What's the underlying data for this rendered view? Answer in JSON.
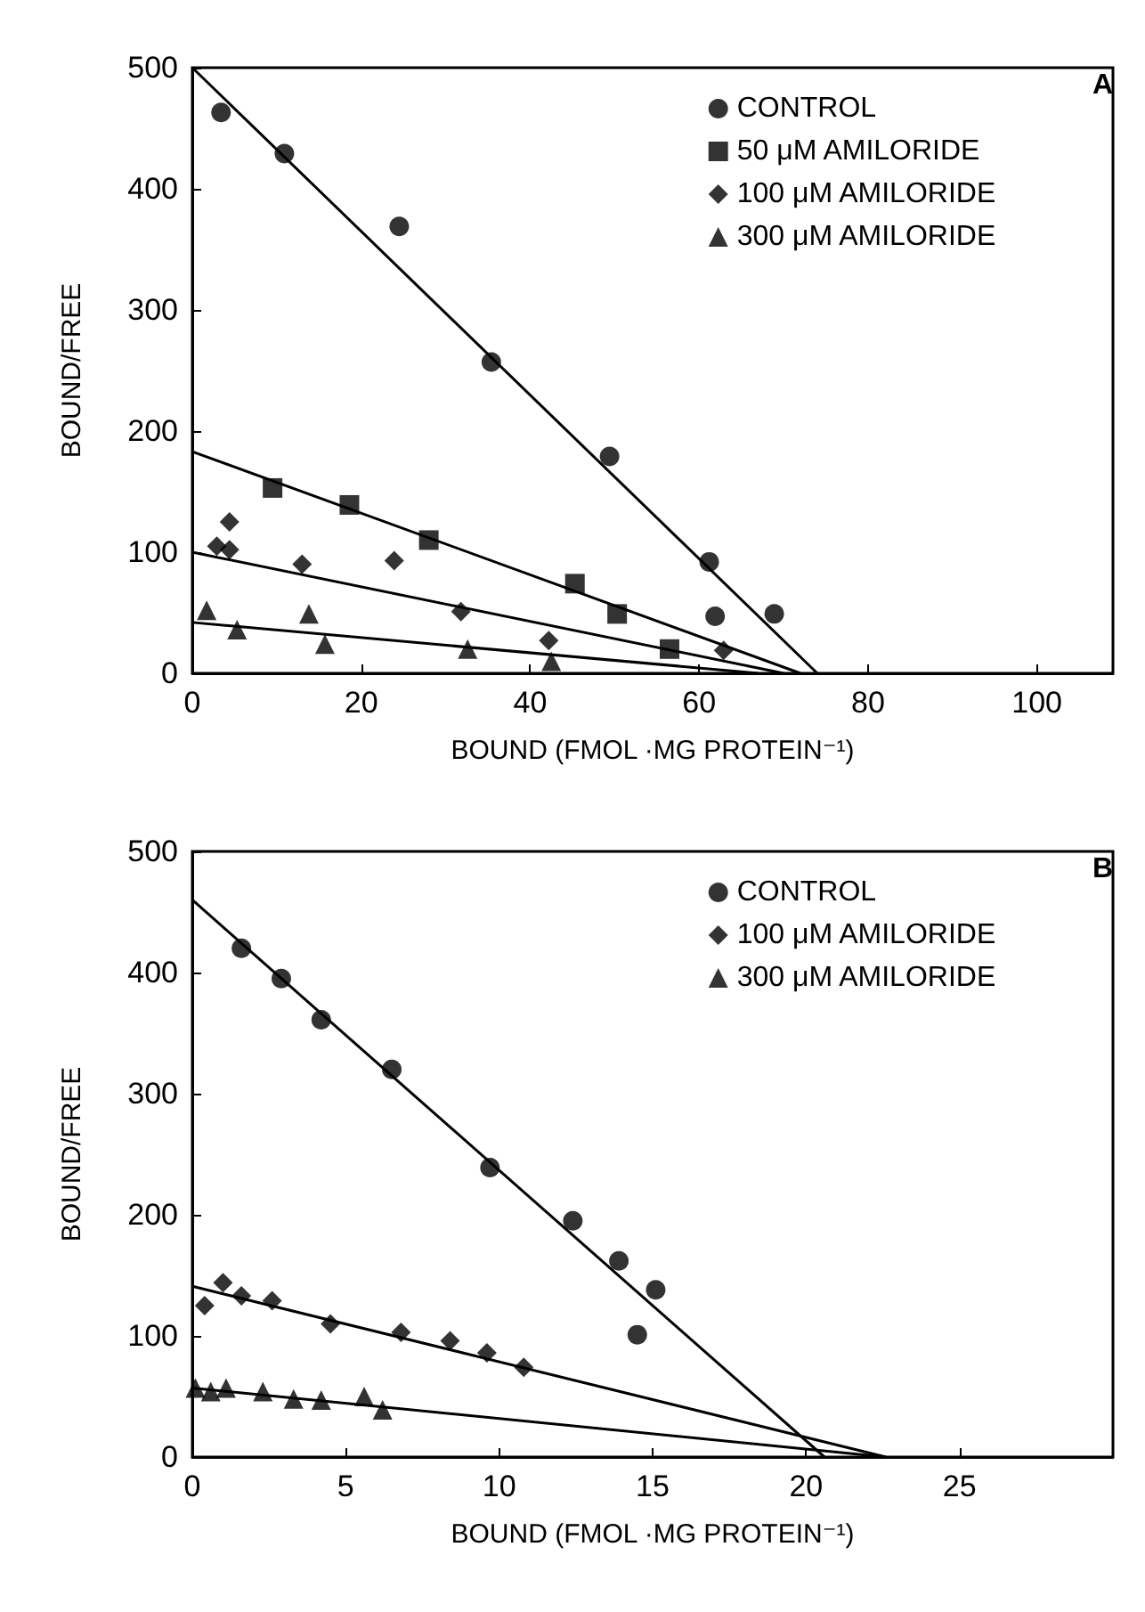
{
  "chart_data": [
    {
      "type": "scatter",
      "xlabel": "BOUND (FMOL ·MG PROTEIN⁻¹)",
      "ylabel": "BOUND/FREE",
      "xlim": [
        0,
        109
      ],
      "xticks": [
        0,
        20,
        40,
        60,
        80,
        100
      ],
      "ylim": [
        0,
        500
      ],
      "yticks": [
        0,
        100,
        200,
        300,
        400,
        500
      ],
      "grid": false,
      "legend": "top right",
      "annotations": [
        "A"
      ],
      "series": [
        {
          "name": "CONTROL",
          "color": "#000000",
          "marker": "circle",
          "x": [
            3.4,
            10.9,
            24.5,
            35.4,
            49.4,
            61.2,
            61.9,
            68.9
          ],
          "values": [
            463,
            429,
            369,
            257,
            179,
            92,
            47,
            49
          ]
        },
        {
          "name": "50 μM AMILORIDE",
          "color": "#000000",
          "marker": "square",
          "x": [
            9.5,
            18.6,
            28.0,
            45.3,
            50.3,
            56.5
          ],
          "values": [
            153,
            139,
            110,
            74,
            49,
            20
          ]
        },
        {
          "name": "100 μM AMILORIDE",
          "color": "#000000",
          "marker": "diamond",
          "x": [
            2.9,
            4.4,
            4.4,
            13,
            23.9,
            31.8,
            42.2,
            62.9
          ],
          "values": [
            105,
            125,
            102,
            90,
            93,
            51,
            27,
            19
          ]
        },
        {
          "name": "300 μM AMILORIDE",
          "color": "#000000",
          "marker": "triangle",
          "x": [
            1.7,
            5.3,
            13.8,
            15.7,
            32.6,
            42.5
          ],
          "values": [
            52,
            36,
            49,
            24,
            20,
            10
          ]
        },
        {
          "type": "line",
          "color": "#000000",
          "line_style": "solid",
          "x": [
            0,
            74
          ],
          "values": [
            500,
            0
          ]
        },
        {
          "type": "line",
          "color": "#000000",
          "line_style": "solid",
          "x": [
            0,
            72
          ],
          "values": [
            183,
            0
          ]
        },
        {
          "type": "line",
          "color": "#000000",
          "line_style": "solid",
          "x": [
            0,
            70
          ],
          "values": [
            100,
            0
          ]
        },
        {
          "type": "line",
          "color": "#000000",
          "line_style": "solid",
          "x": [
            0,
            67
          ],
          "values": [
            42,
            0
          ]
        }
      ]
    },
    {
      "type": "scatter",
      "xlabel": "BOUND (FMOL ·MG PROTEIN⁻¹)",
      "ylabel": "BOUND/FREE",
      "xlim": [
        0,
        30
      ],
      "xticks": [
        0,
        5,
        10,
        15,
        20,
        25
      ],
      "ylim": [
        0,
        500
      ],
      "yticks": [
        0,
        100,
        200,
        300,
        400,
        500
      ],
      "grid": false,
      "legend": "top right",
      "annotations": [
        "B"
      ],
      "series": [
        {
          "name": "CONTROL",
          "color": "#000000",
          "marker": "circle",
          "x": [
            1.6,
            2.9,
            4.2,
            6.5,
            9.7,
            12.4,
            13.9,
            15.1,
            14.5
          ],
          "values": [
            420,
            395,
            361,
            320,
            239,
            195,
            162,
            138,
            101
          ]
        },
        {
          "name": "100 μM AMILORIDE",
          "color": "#000000",
          "marker": "diamond",
          "x": [
            0.4,
            1.0,
            1.6,
            2.6,
            4.5,
            6.8,
            8.4,
            9.6,
            10.8
          ],
          "values": [
            125,
            144,
            133,
            129,
            110,
            103,
            96,
            86,
            74
          ]
        },
        {
          "name": "300 μM AMILORIDE",
          "color": "#000000",
          "marker": "triangle",
          "x": [
            0.1,
            0.6,
            1.1,
            2.3,
            3.3,
            4.2,
            5.6,
            6.2
          ],
          "values": [
            57,
            54,
            57,
            54,
            48,
            47,
            50,
            39
          ]
        },
        {
          "type": "line",
          "color": "#000000",
          "line_style": "solid",
          "x": [
            0,
            20.6
          ],
          "values": [
            460,
            0
          ]
        },
        {
          "type": "line",
          "color": "#000000",
          "line_style": "solid",
          "x": [
            0,
            22.6
          ],
          "values": [
            141,
            0
          ]
        },
        {
          "type": "line",
          "color": "#000000",
          "line_style": "solid",
          "x": [
            0,
            22.6
          ],
          "values": [
            57,
            0
          ]
        }
      ]
    }
  ]
}
